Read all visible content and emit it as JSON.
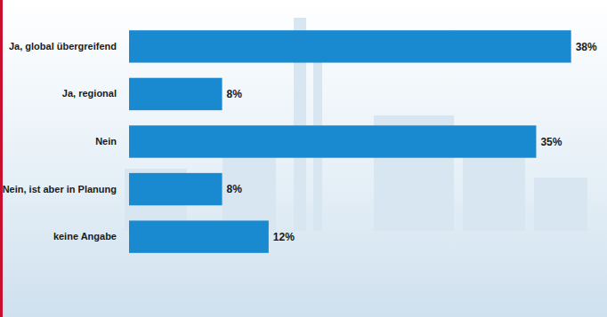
{
  "chart_data": {
    "type": "bar",
    "orientation": "horizontal",
    "categories": [
      "Ja, global übergreifend",
      "Ja, regional",
      "Nein",
      "Nein, ist aber in Planung",
      "keine Angabe"
    ],
    "values": [
      38,
      8,
      35,
      8,
      12
    ],
    "value_labels": [
      "38%",
      "8%",
      "35%",
      "8%",
      "12%"
    ],
    "color": "#1a8ad0",
    "data_labels": true,
    "tick_labels": "y"
  }
}
